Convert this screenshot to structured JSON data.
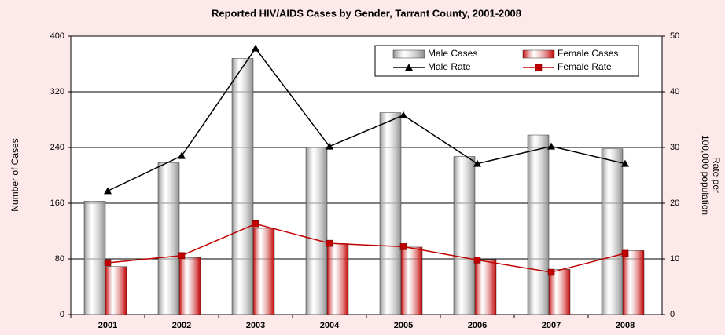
{
  "chart_data": {
    "type": "bar_line",
    "title": "Reported HIV/AIDS Cases by Gender, Tarrant County, 2001-2008",
    "y_label": "Number of Cases",
    "y2_label": [
      "Rate per",
      "100,000 population"
    ],
    "categories": [
      "2001",
      "2002",
      "2003",
      "2004",
      "2005",
      "2006",
      "2007",
      "2008"
    ],
    "ylim": [
      0,
      400
    ],
    "yticks": [
      0,
      80,
      160,
      240,
      320,
      400
    ],
    "y2lim": [
      0,
      50
    ],
    "y2ticks": [
      0,
      10,
      20,
      30,
      40,
      50
    ],
    "grid": true,
    "series": [
      {
        "name": "Male Cases",
        "kind": "bar",
        "color": "#8c8c8c",
        "values": [
          163,
          218,
          368,
          240,
          290,
          227,
          258,
          238
        ]
      },
      {
        "name": "Female Cases",
        "kind": "bar",
        "color": "#c00000",
        "values": [
          69,
          82,
          124,
          102,
          97,
          79,
          65,
          92
        ]
      },
      {
        "name": "Male Rate",
        "kind": "line",
        "axis": "y2",
        "marker": "triangle",
        "color": "#000000",
        "values": [
          22.2,
          28.5,
          47.8,
          30.2,
          35.8,
          27.1,
          30.2,
          27.1
        ]
      },
      {
        "name": "Female Rate",
        "kind": "line",
        "axis": "y2",
        "marker": "square",
        "color": "#c00000",
        "values": [
          9.3,
          10.6,
          16.3,
          12.8,
          12.2,
          9.8,
          7.6,
          11.0
        ]
      }
    ]
  }
}
